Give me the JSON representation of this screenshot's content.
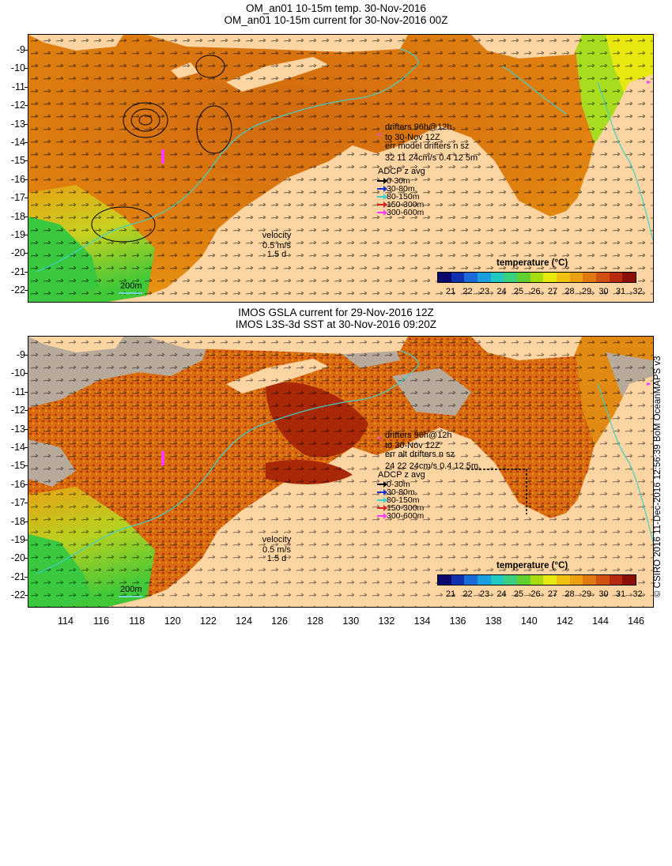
{
  "panels": [
    {
      "title_line1": "OM_an01 10-15m temp. 30-Nov-2016",
      "title_line2": "OM_an01 10-15m current for 30-Nov-2016 00Z",
      "drifters": [
        "drifters 96h@12h",
        "to 30-Nov 12Z",
        "err model drifters n sz",
        "32 11 24cm/s 0.4 12 5m"
      ],
      "adcp_title": "ADCP z avg",
      "adcp_items": [
        {
          "label": "0-30m",
          "color": "#000000"
        },
        {
          "label": "30-80m",
          "color": "#1f2fd0"
        },
        {
          "label": "80-150m",
          "color": "#3fd0d0"
        },
        {
          "label": "150-300m",
          "color": "#e02020"
        },
        {
          "label": "300-600m",
          "color": "#ff3cff"
        }
      ],
      "velocity": [
        "velocity",
        "0.5 m/s",
        "1.5 d"
      ],
      "scale_label": "200m",
      "legend_title": "temperature (°C)"
    },
    {
      "title_line1": "IMOS GSLA current for 29-Nov-2016 12Z",
      "title_line2": "IMOS L3S-3d SST at 30-Nov-2016 09:20Z",
      "drifters": [
        "drifters 96h@12h",
        "to 30-Nov 12Z",
        "err alt drifters n sz",
        "24 22 24cm/s 0.4 12 5m"
      ],
      "adcp_title": "ADCP z avg",
      "adcp_items": [
        {
          "label": "0-30m",
          "color": "#000000"
        },
        {
          "label": "30-80m",
          "color": "#1f2fd0"
        },
        {
          "label": "80-150m",
          "color": "#3fd0d0"
        },
        {
          "label": "150-300m",
          "color": "#e02020"
        },
        {
          "label": "300-600m",
          "color": "#ff3cff"
        }
      ],
      "velocity": [
        "velocity",
        "0.5 m/s",
        "1.5 d"
      ],
      "scale_label": "200m",
      "legend_title": "temperature (°C)"
    }
  ],
  "colorbar_labels": [
    "21",
    "22",
    "23",
    "24",
    "25",
    "26",
    "27",
    "28",
    "29",
    "30",
    "31",
    "32"
  ],
  "colorbar_colors": [
    "#0a0a6e",
    "#1030b0",
    "#1a6ad8",
    "#1aa0e0",
    "#20c8c0",
    "#3ad080",
    "#60d030",
    "#a8dc10",
    "#e8e810",
    "#f0c010",
    "#eaa010",
    "#e07a10",
    "#d05010",
    "#b82a10",
    "#8a1008"
  ],
  "lat_labels": [
    "-9",
    "-10",
    "-11",
    "-12",
    "-13",
    "-14",
    "-15",
    "-16",
    "-17",
    "-18",
    "-19",
    "-20",
    "-21",
    "-22"
  ],
  "lon_labels": [
    "114",
    "116",
    "118",
    "120",
    "122",
    "124",
    "126",
    "128",
    "130",
    "132",
    "134",
    "136",
    "138",
    "140",
    "142",
    "144",
    "146"
  ],
  "credit": "© CSIRO 2016  11-Dec-2016 12:56:39 BoM OceanMAPS v3",
  "colors": {
    "land": "#fcd5a3",
    "sea_warm": "#e88a14",
    "sea_hot": "#b83208",
    "sea_cool": "#60d030",
    "cloud": "#b8aa9a",
    "isobath": "#40d0c8"
  }
}
